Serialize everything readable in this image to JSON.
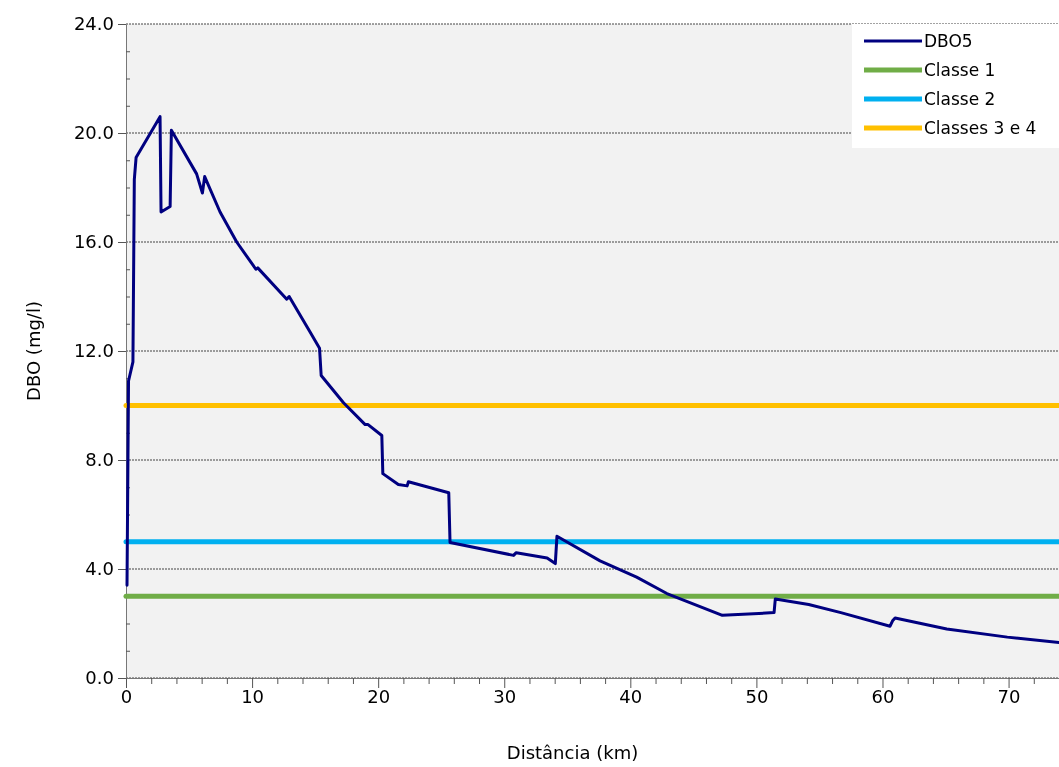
{
  "chart_data": {
    "type": "line",
    "xlabel": "Distância (km)",
    "ylabel": "DBO (mg/l)",
    "xlim": [
      0,
      74
    ],
    "ylim": [
      0,
      24
    ],
    "xticks": [
      0,
      {
        "value": 2,
        "label": null
      },
      {
        "value": 4,
        "label": null
      },
      {
        "value": 6,
        "label": null
      },
      {
        "value": 8,
        "label": null
      },
      10,
      {
        "value": 12,
        "label": null
      },
      {
        "value": 14,
        "label": null
      },
      {
        "value": 16,
        "label": null
      },
      {
        "value": 18,
        "label": null
      },
      20,
      {
        "value": 22,
        "label": null
      },
      {
        "value": 24,
        "label": null
      },
      {
        "value": 26,
        "label": null
      },
      {
        "value": 28,
        "label": null
      },
      30,
      {
        "value": 32,
        "label": null
      },
      {
        "value": 34,
        "label": null
      },
      {
        "value": 36,
        "label": null
      },
      {
        "value": 38,
        "label": null
      },
      40,
      {
        "value": 42,
        "label": null
      },
      {
        "value": 44,
        "label": null
      },
      {
        "value": 46,
        "label": null
      },
      {
        "value": 48,
        "label": null
      },
      50,
      {
        "value": 52,
        "label": null
      },
      {
        "value": 54,
        "label": null
      },
      {
        "value": 56,
        "label": null
      },
      {
        "value": 58,
        "label": null
      },
      60,
      {
        "value": 62,
        "label": null
      },
      {
        "value": 64,
        "label": null
      },
      {
        "value": 66,
        "label": null
      },
      {
        "value": 68,
        "label": null
      },
      70,
      {
        "value": 72,
        "label": null
      }
    ],
    "yticks": [
      {
        "value": 0,
        "label": "0.0"
      },
      {
        "value": 1,
        "label": null
      },
      {
        "value": 2,
        "label": null
      },
      {
        "value": 3,
        "label": null
      },
      {
        "value": 4,
        "label": "4.0"
      },
      {
        "value": 5,
        "label": null
      },
      {
        "value": 6,
        "label": null
      },
      {
        "value": 7,
        "label": null
      },
      {
        "value": 8,
        "label": "8.0"
      },
      {
        "value": 9,
        "label": null
      },
      {
        "value": 10,
        "label": null
      },
      {
        "value": 11,
        "label": null
      },
      {
        "value": 12,
        "label": "12.0"
      },
      {
        "value": 13,
        "label": null
      },
      {
        "value": 14,
        "label": null
      },
      {
        "value": 15,
        "label": null
      },
      {
        "value": 16,
        "label": "16.0"
      },
      {
        "value": 17,
        "label": null
      },
      {
        "value": 18,
        "label": null
      },
      {
        "value": 19,
        "label": null
      },
      {
        "value": 20,
        "label": "20.0"
      },
      {
        "value": 21,
        "label": null
      },
      {
        "value": 22,
        "label": null
      },
      {
        "value": 23,
        "label": null
      },
      {
        "value": 24,
        "label": "24.0"
      }
    ],
    "grid": "y",
    "legend": "top right",
    "marker": "none",
    "line_style": "solid",
    "series": [
      {
        "name": "DBO5",
        "color": "#000080",
        "x": [
          0.08,
          0.2,
          0.55,
          0.66,
          0.8,
          2.7,
          2.78,
          3.5,
          3.6,
          5.6,
          6.06,
          6.24,
          7.46,
          8.78,
          10.3,
          10.45,
          12.75,
          12.94,
          14.6,
          15.35,
          15.48,
          17.25,
          18.97,
          19.2,
          20.29,
          20.37,
          21.6,
          22.3,
          22.4,
          25.6,
          25.7,
          30.74,
          30.95,
          33.4,
          34.05,
          34.18,
          37.6,
          40.5,
          42.9,
          47.3,
          51.4,
          51.5,
          54.15,
          56.7,
          60.6,
          60.8,
          61.0,
          65.1,
          69.9,
          74
        ],
        "values": [
          3.4,
          10.9,
          11.6,
          18.3,
          19.1,
          20.6,
          17.1,
          17.3,
          20.1,
          18.5,
          17.8,
          18.4,
          17.1,
          16.0,
          15.0,
          15.05,
          13.9,
          14.0,
          12.7,
          12.1,
          11.1,
          10.1,
          9.3,
          9.3,
          8.9,
          7.5,
          7.1,
          7.05,
          7.2,
          6.8,
          4.97,
          4.5,
          4.6,
          4.4,
          4.2,
          5.2,
          4.3,
          3.7,
          3.1,
          2.3,
          2.4,
          2.9,
          2.7,
          2.4,
          1.9,
          2.1,
          2.2,
          1.8,
          1.5,
          1.3
        ]
      },
      {
        "name": "Classe 1",
        "color": "#70ad47",
        "x": [
          0,
          74
        ],
        "values": [
          3,
          3
        ]
      },
      {
        "name": "Classe 2",
        "color": "#00b0f0",
        "x": [
          0,
          74
        ],
        "values": [
          5,
          5
        ]
      },
      {
        "name": "Classes 3 e 4",
        "color": "#ffc000",
        "x": [
          0,
          74
        ],
        "values": [
          10,
          10
        ]
      }
    ]
  }
}
